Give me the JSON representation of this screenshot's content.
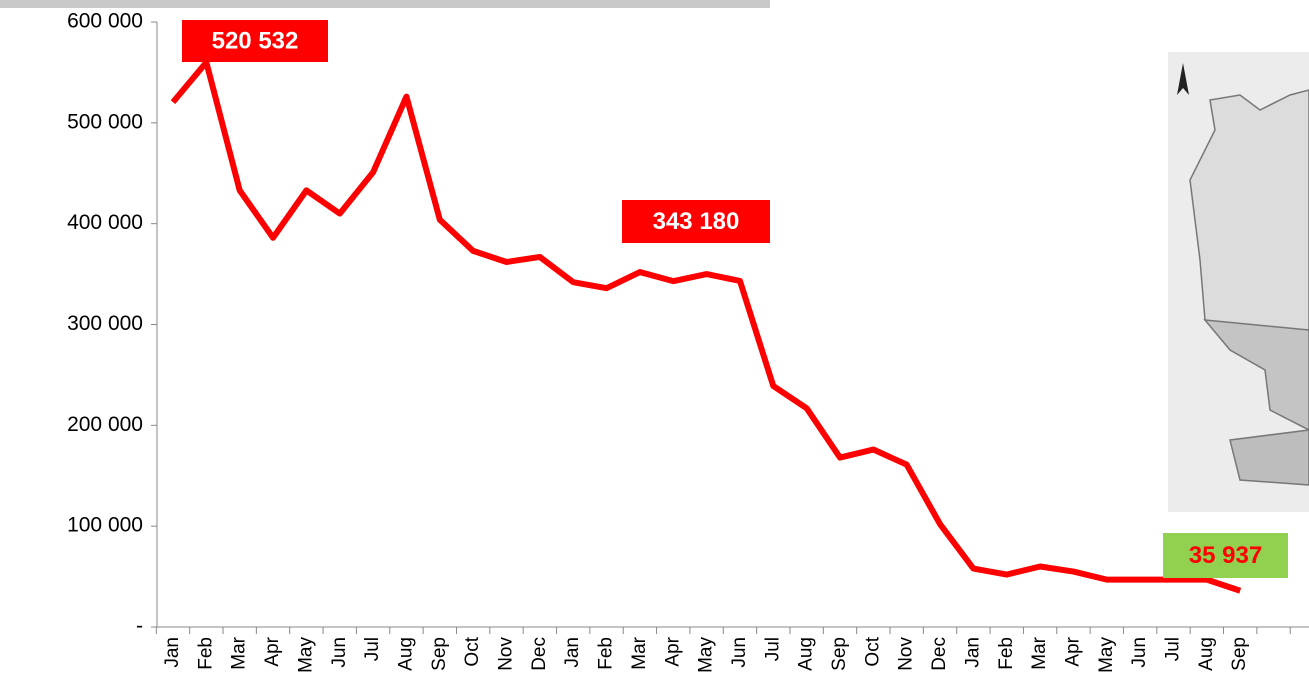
{
  "chart_data": {
    "type": "line",
    "categories": [
      "Jan",
      "Feb",
      "Mar",
      "Apr",
      "May",
      "Jun",
      "Jul",
      "Aug",
      "Sep",
      "Oct",
      "Nov",
      "Dec",
      "Jan",
      "Feb",
      "Mar",
      "Apr",
      "May",
      "Jun",
      "Jul",
      "Aug",
      "Sep",
      "Oct",
      "Nov",
      "Dec",
      "Jan",
      "Feb",
      "Mar",
      "Apr",
      "May",
      "Jun",
      "Jul",
      "Aug",
      "Sep",
      null,
      null
    ],
    "series": [
      {
        "color": "#ff0000",
        "values": [
          520532,
          560000,
          433000,
          386000,
          433000,
          410000,
          451000,
          526000,
          404000,
          373000,
          362000,
          367000,
          342000,
          336000,
          352000,
          343000,
          350000,
          343180,
          239000,
          217000,
          168000,
          176000,
          161000,
          102000,
          58000,
          52000,
          60000,
          55000,
          47000,
          47000,
          47000,
          47000,
          35937,
          null,
          null
        ],
        "value_labels": [
          "520 532",
          null,
          null,
          null,
          null,
          null,
          null,
          null,
          null,
          null,
          null,
          null,
          null,
          null,
          null,
          null,
          null,
          "343 180",
          null,
          null,
          null,
          null,
          null,
          null,
          null,
          null,
          null,
          null,
          null,
          null,
          null,
          null,
          "35 937",
          null,
          null
        ]
      }
    ],
    "ylim": [
      0,
      600000
    ],
    "yticks": [
      {
        "value": 0,
        "label": "-"
      },
      {
        "value": 100000,
        "label": "100 000"
      },
      {
        "value": 200000,
        "label": "200 000"
      },
      {
        "value": 300000,
        "label": "300 000"
      },
      {
        "value": 400000,
        "label": "400 000"
      },
      {
        "value": 500000,
        "label": "500 000"
      },
      {
        "value": 600000,
        "label": "600 000"
      }
    ]
  }
}
